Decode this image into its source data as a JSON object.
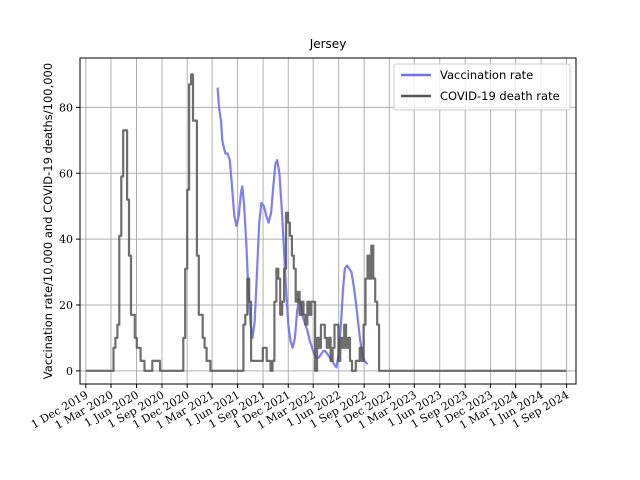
{
  "chart_data": {
    "type": "line",
    "title": "Jersey",
    "xlabel": "",
    "ylabel": "Vaccination rate/10,000 and COVID-19 deaths/100,000",
    "xlim": [
      "2019-11-10",
      "2024-10-05"
    ],
    "ylim": [
      -4,
      95
    ],
    "yticks": [
      0,
      20,
      40,
      60,
      80
    ],
    "xticks": [
      {
        "date": "2019-12-01",
        "label": "1 Dec 2019"
      },
      {
        "date": "2020-03-01",
        "label": "1 Mar 2020"
      },
      {
        "date": "2020-06-01",
        "label": "1 Jun 2020"
      },
      {
        "date": "2020-09-01",
        "label": "1 Sep 2020"
      },
      {
        "date": "2020-12-01",
        "label": "1 Dec 2020"
      },
      {
        "date": "2021-03-01",
        "label": "1 Mar 2021"
      },
      {
        "date": "2021-06-01",
        "label": "1 Jun 2021"
      },
      {
        "date": "2021-09-01",
        "label": "1 Sep 2021"
      },
      {
        "date": "2021-12-01",
        "label": "1 Dec 2021"
      },
      {
        "date": "2022-03-01",
        "label": "1 Mar 2022"
      },
      {
        "date": "2022-06-01",
        "label": "1 Jun 2022"
      },
      {
        "date": "2022-09-01",
        "label": "1 Sep 2022"
      },
      {
        "date": "2022-12-01",
        "label": "1 Dec 2022"
      },
      {
        "date": "2023-03-01",
        "label": "1 Mar 2023"
      },
      {
        "date": "2023-06-01",
        "label": "1 Jun 2023"
      },
      {
        "date": "2023-09-01",
        "label": "1 Sep 2023"
      },
      {
        "date": "2023-12-01",
        "label": "1 Dec 2023"
      },
      {
        "date": "2024-03-01",
        "label": "1 Mar 2024"
      },
      {
        "date": "2024-06-01",
        "label": "1 Jun 2024"
      },
      {
        "date": "2024-09-01",
        "label": "1 Sep 2024"
      }
    ],
    "grid": true,
    "legend_position": "top-right",
    "series": [
      {
        "name": "Vaccination rate",
        "color": "#7070f0",
        "style": "line",
        "points": [
          [
            "2021-03-21",
            86
          ],
          [
            "2021-03-26",
            80
          ],
          [
            "2021-04-02",
            76
          ],
          [
            "2021-04-07",
            70
          ],
          [
            "2021-04-12",
            68
          ],
          [
            "2021-04-18",
            66
          ],
          [
            "2021-04-26",
            66
          ],
          [
            "2021-05-04",
            64
          ],
          [
            "2021-05-12",
            56
          ],
          [
            "2021-05-20",
            47
          ],
          [
            "2021-05-28",
            44
          ],
          [
            "2021-06-05",
            47
          ],
          [
            "2021-06-13",
            54
          ],
          [
            "2021-06-18",
            56
          ],
          [
            "2021-06-25",
            50
          ],
          [
            "2021-07-03",
            38
          ],
          [
            "2021-07-10",
            24
          ],
          [
            "2021-07-18",
            14
          ],
          [
            "2021-07-25",
            10
          ],
          [
            "2021-08-02",
            15
          ],
          [
            "2021-08-10",
            30
          ],
          [
            "2021-08-18",
            45
          ],
          [
            "2021-08-26",
            51
          ],
          [
            "2021-09-04",
            50
          ],
          [
            "2021-09-13",
            47
          ],
          [
            "2021-09-21",
            45
          ],
          [
            "2021-09-30",
            48
          ],
          [
            "2021-10-08",
            56
          ],
          [
            "2021-10-16",
            63
          ],
          [
            "2021-10-22",
            64
          ],
          [
            "2021-10-30",
            60
          ],
          [
            "2021-11-07",
            50
          ],
          [
            "2021-11-15",
            38
          ],
          [
            "2021-11-23",
            25
          ],
          [
            "2021-12-01",
            14
          ],
          [
            "2021-12-09",
            9
          ],
          [
            "2021-12-17",
            7
          ],
          [
            "2021-12-25",
            10
          ],
          [
            "2022-01-02",
            18
          ],
          [
            "2022-01-08",
            22
          ],
          [
            "2022-01-16",
            20
          ],
          [
            "2022-01-24",
            16
          ],
          [
            "2022-02-01",
            14
          ],
          [
            "2022-02-09",
            12
          ],
          [
            "2022-02-17",
            9
          ],
          [
            "2022-02-25",
            7
          ],
          [
            "2022-03-05",
            5
          ],
          [
            "2022-03-13",
            4
          ],
          [
            "2022-03-21",
            4
          ],
          [
            "2022-03-29",
            5
          ],
          [
            "2022-04-06",
            6
          ],
          [
            "2022-04-14",
            6
          ],
          [
            "2022-04-22",
            5
          ],
          [
            "2022-04-30",
            4
          ],
          [
            "2022-05-08",
            3
          ],
          [
            "2022-05-16",
            2
          ],
          [
            "2022-05-24",
            1
          ],
          [
            "2022-06-01",
            5
          ],
          [
            "2022-06-09",
            14
          ],
          [
            "2022-06-17",
            25
          ],
          [
            "2022-06-23",
            31
          ],
          [
            "2022-07-01",
            32
          ],
          [
            "2022-07-09",
            31
          ],
          [
            "2022-07-17",
            30
          ],
          [
            "2022-07-25",
            26
          ],
          [
            "2022-08-02",
            21
          ],
          [
            "2022-08-10",
            15
          ],
          [
            "2022-08-18",
            9
          ],
          [
            "2022-08-26",
            5
          ],
          [
            "2022-09-03",
            3
          ],
          [
            "2022-09-13",
            2
          ]
        ]
      },
      {
        "name": "COVID-19 death rate",
        "color": "#555555",
        "style": "step",
        "points": [
          [
            "2019-12-01",
            0
          ],
          [
            "2020-03-01",
            0
          ],
          [
            "2020-03-10",
            7
          ],
          [
            "2020-03-17",
            10
          ],
          [
            "2020-03-24",
            14
          ],
          [
            "2020-03-31",
            41
          ],
          [
            "2020-04-07",
            59
          ],
          [
            "2020-04-14",
            73
          ],
          [
            "2020-04-28",
            52
          ],
          [
            "2020-05-05",
            35
          ],
          [
            "2020-05-12",
            17
          ],
          [
            "2020-05-26",
            10
          ],
          [
            "2020-06-02",
            7
          ],
          [
            "2020-06-16",
            3
          ],
          [
            "2020-06-30",
            0
          ],
          [
            "2020-07-28",
            3
          ],
          [
            "2020-08-25",
            0
          ],
          [
            "2020-11-17",
            10
          ],
          [
            "2020-11-24",
            31
          ],
          [
            "2020-12-01",
            55
          ],
          [
            "2020-12-08",
            87
          ],
          [
            "2020-12-15",
            90
          ],
          [
            "2020-12-22",
            76
          ],
          [
            "2021-01-05",
            35
          ],
          [
            "2021-01-12",
            17
          ],
          [
            "2021-01-26",
            10
          ],
          [
            "2021-02-02",
            7
          ],
          [
            "2021-02-09",
            3
          ],
          [
            "2021-02-23",
            0
          ],
          [
            "2021-06-15",
            0
          ],
          [
            "2021-06-22",
            14
          ],
          [
            "2021-06-29",
            17
          ],
          [
            "2021-07-06",
            28
          ],
          [
            "2021-07-13",
            21
          ],
          [
            "2021-07-20",
            3
          ],
          [
            "2021-08-31",
            7
          ],
          [
            "2021-09-14",
            3
          ],
          [
            "2021-09-28",
            0
          ],
          [
            "2021-10-05",
            3
          ],
          [
            "2021-10-12",
            21
          ],
          [
            "2021-10-19",
            31
          ],
          [
            "2021-10-26",
            28
          ],
          [
            "2021-11-02",
            17
          ],
          [
            "2021-11-09",
            21
          ],
          [
            "2021-11-16",
            31
          ],
          [
            "2021-11-23",
            48
          ],
          [
            "2021-11-30",
            45
          ],
          [
            "2021-12-07",
            41
          ],
          [
            "2021-12-14",
            35
          ],
          [
            "2021-12-21",
            31
          ],
          [
            "2021-12-28",
            21
          ],
          [
            "2022-01-04",
            24
          ],
          [
            "2022-01-11",
            17
          ],
          [
            "2022-01-18",
            21
          ],
          [
            "2022-01-25",
            17
          ],
          [
            "2022-02-01",
            14
          ],
          [
            "2022-02-08",
            21
          ],
          [
            "2022-02-15",
            17
          ],
          [
            "2022-02-22",
            21
          ],
          [
            "2022-03-08",
            0
          ],
          [
            "2022-03-15",
            10
          ],
          [
            "2022-03-22",
            7
          ],
          [
            "2022-03-29",
            14
          ],
          [
            "2022-04-05",
            14
          ],
          [
            "2022-04-12",
            10
          ],
          [
            "2022-04-19",
            7
          ],
          [
            "2022-04-26",
            10
          ],
          [
            "2022-05-03",
            3
          ],
          [
            "2022-05-10",
            7
          ],
          [
            "2022-05-17",
            14
          ],
          [
            "2022-05-24",
            14
          ],
          [
            "2022-05-31",
            3
          ],
          [
            "2022-06-07",
            10
          ],
          [
            "2022-06-14",
            7
          ],
          [
            "2022-06-21",
            14
          ],
          [
            "2022-06-28",
            7
          ],
          [
            "2022-07-05",
            10
          ],
          [
            "2022-07-12",
            3
          ],
          [
            "2022-07-19",
            0
          ],
          [
            "2022-08-02",
            3
          ],
          [
            "2022-08-16",
            7
          ],
          [
            "2022-08-23",
            3
          ],
          [
            "2022-08-30",
            14
          ],
          [
            "2022-09-06",
            28
          ],
          [
            "2022-09-13",
            35
          ],
          [
            "2022-09-20",
            28
          ],
          [
            "2022-09-27",
            38
          ],
          [
            "2022-10-04",
            28
          ],
          [
            "2022-10-11",
            21
          ],
          [
            "2022-10-18",
            14
          ],
          [
            "2022-10-25",
            0
          ],
          [
            "2024-08-31",
            0
          ]
        ]
      }
    ]
  }
}
